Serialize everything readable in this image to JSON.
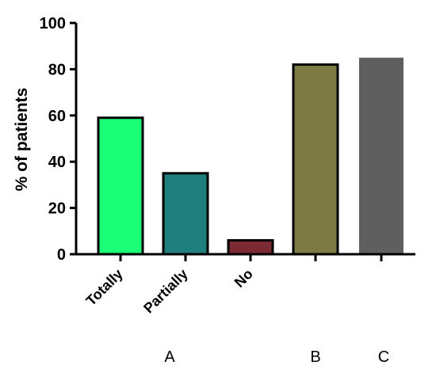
{
  "chart_data": {
    "type": "bar",
    "categories": [
      "Totally",
      "Partially",
      "No",
      "",
      ""
    ],
    "values": [
      59,
      35,
      6,
      82,
      85
    ],
    "colors": [
      "#1aff75",
      "#1f7f7c",
      "#7d2a34",
      "#7d7a44",
      "#5f5f5f"
    ],
    "outlined": [
      true,
      true,
      true,
      true,
      false
    ],
    "groups": [
      "A",
      "A",
      "A",
      "B",
      "C"
    ],
    "group_labels": [
      "A",
      "B",
      "C"
    ],
    "ylabel": "% of patients",
    "xlabel": "",
    "ylim": [
      0,
      100
    ],
    "yticks": [
      0,
      20,
      40,
      60,
      80,
      100
    ],
    "grid": false,
    "legend": "none"
  }
}
